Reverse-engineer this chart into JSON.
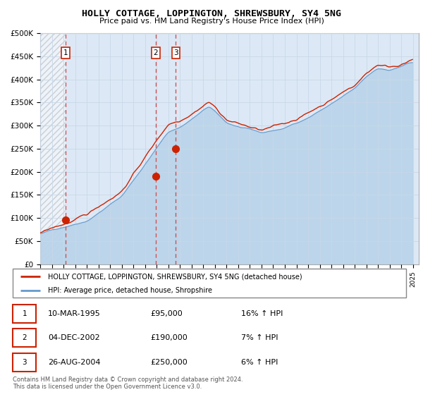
{
  "title": "HOLLY COTTAGE, LOPPINGTON, SHREWSBURY, SY4 5NG",
  "subtitle": "Price paid vs. HM Land Registry's House Price Index (HPI)",
  "ylabel_ticks": [
    "£0",
    "£50K",
    "£100K",
    "£150K",
    "£200K",
    "£250K",
    "£300K",
    "£350K",
    "£400K",
    "£450K",
    "£500K"
  ],
  "ytick_values": [
    0,
    50000,
    100000,
    150000,
    200000,
    250000,
    300000,
    350000,
    400000,
    450000,
    500000
  ],
  "ylim": [
    0,
    500000
  ],
  "xlim_start": 1993.0,
  "xlim_end": 2025.5,
  "hatch_end": 1995.19,
  "sale_dates": [
    1995.19,
    2002.92,
    2004.65
  ],
  "sale_prices": [
    95000,
    190000,
    250000
  ],
  "sale_labels": [
    "1",
    "2",
    "3"
  ],
  "hpi_color": "#bad4ea",
  "hpi_line_color": "#6699cc",
  "price_color": "#cc2200",
  "vline_color": "#cc4444",
  "grid_color": "#c8d8e8",
  "bg_color": "#dce8f5",
  "legend_label_price": "HOLLY COTTAGE, LOPPINGTON, SHREWSBURY, SY4 5NG (detached house)",
  "legend_label_hpi": "HPI: Average price, detached house, Shropshire",
  "table_rows": [
    {
      "num": "1",
      "date": "10-MAR-1995",
      "price": "£95,000",
      "hpi": "16% ↑ HPI"
    },
    {
      "num": "2",
      "date": "04-DEC-2002",
      "price": "£190,000",
      "hpi": "7% ↑ HPI"
    },
    {
      "num": "3",
      "date": "26-AUG-2004",
      "price": "£250,000",
      "hpi": "6% ↑ HPI"
    }
  ],
  "footer": "Contains HM Land Registry data © Crown copyright and database right 2024.\nThis data is licensed under the Open Government Licence v3.0."
}
